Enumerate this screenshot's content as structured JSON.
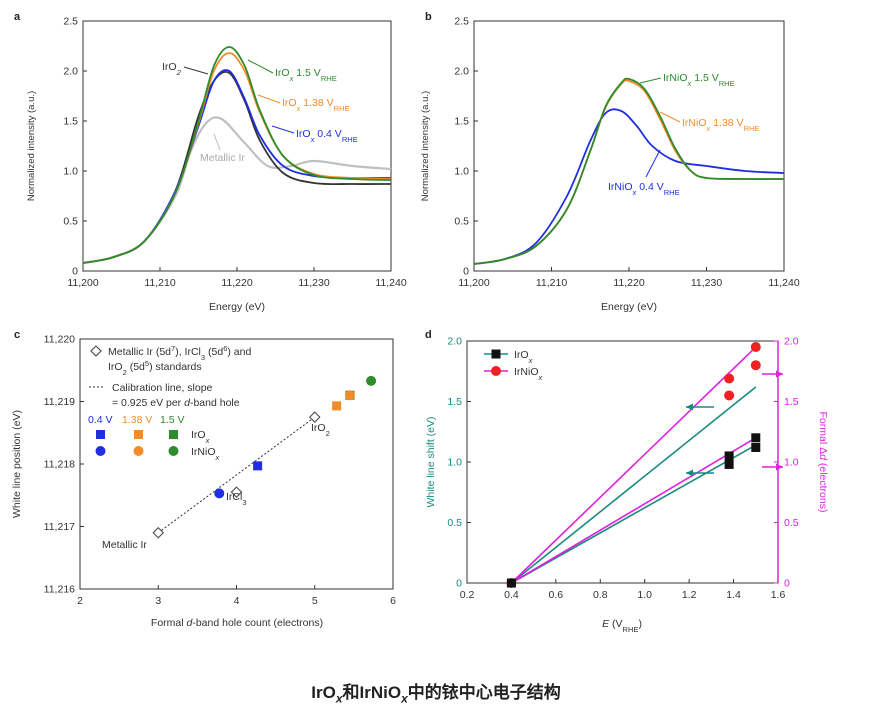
{
  "caption": {
    "main": "IrO",
    "sub1": "x",
    "mid": "和IrNiO",
    "sub2": "x",
    "tail": "中的铱中心电子结构"
  },
  "colors": {
    "green": "#2e8b2e",
    "orange": "#f28c28",
    "blue": "#1f2fe0",
    "grey": "#c0c0c0",
    "dark": "#333333",
    "teal": "#1a8a80",
    "magenta": "#e020e0",
    "red": "#ee2222"
  },
  "chart_data": [
    {
      "panel": "a",
      "type": "line",
      "xlabel": "Energy (eV)",
      "ylabel": "Normalized intensity (a.u.)",
      "xlim": [
        11200,
        11240
      ],
      "ylim": [
        0,
        2.5
      ],
      "xticks": [
        "11,200",
        "11,210",
        "11,220",
        "11,230",
        "11,240"
      ],
      "yticks": [
        "0",
        "0.5",
        "1.0",
        "1.5",
        "2.0",
        "2.5"
      ],
      "series": [
        {
          "name": "IrO2",
          "color": "#333333",
          "x": [
            11200,
            11204,
            11208,
            11212,
            11215,
            11217,
            11219,
            11221,
            11223,
            11226,
            11230,
            11235,
            11240
          ],
          "y": [
            0.08,
            0.14,
            0.3,
            0.8,
            1.55,
            1.9,
            1.98,
            1.7,
            1.3,
            0.98,
            0.88,
            0.87,
            0.87
          ]
        },
        {
          "name": "IrOx 1.5 VRHE",
          "color": "#2e8b2e",
          "x": [
            11200,
            11204,
            11208,
            11212,
            11215,
            11217,
            11219,
            11221,
            11223,
            11226,
            11230,
            11235,
            11240
          ],
          "y": [
            0.08,
            0.14,
            0.3,
            0.78,
            1.5,
            2.05,
            2.24,
            2.05,
            1.6,
            1.15,
            0.96,
            0.92,
            0.91
          ]
        },
        {
          "name": "IrOx 1.38 VRHE",
          "color": "#f28c28",
          "x": [
            11200,
            11204,
            11208,
            11212,
            11215,
            11217,
            11219,
            11221,
            11223,
            11226,
            11230,
            11235,
            11240
          ],
          "y": [
            0.08,
            0.14,
            0.3,
            0.78,
            1.48,
            2.0,
            2.18,
            2.0,
            1.58,
            1.15,
            0.97,
            0.93,
            0.92
          ]
        },
        {
          "name": "IrOx 0.4 VRHE",
          "color": "#1f2fe0",
          "x": [
            11200,
            11204,
            11208,
            11212,
            11215,
            11217,
            11219,
            11221,
            11223,
            11226,
            11230,
            11235,
            11240
          ],
          "y": [
            0.08,
            0.14,
            0.3,
            0.8,
            1.45,
            1.9,
            2.0,
            1.72,
            1.35,
            1.05,
            0.95,
            0.93,
            0.93
          ]
        },
        {
          "name": "Metallic Ir",
          "color": "#c0c0c0",
          "x": [
            11200,
            11204,
            11208,
            11212,
            11214,
            11216,
            11218,
            11221,
            11224,
            11227,
            11230,
            11235,
            11240
          ],
          "y": [
            0.08,
            0.14,
            0.3,
            0.75,
            1.2,
            1.48,
            1.52,
            1.28,
            1.05,
            1.05,
            1.1,
            1.05,
            1.02
          ]
        }
      ],
      "labels": [
        {
          "main": "IrO",
          "sub": "2",
          "tail": "",
          "color": "#333333"
        },
        {
          "main": "IrO",
          "sub": "x",
          "tail": " 1.5 V",
          "sub2": "RHE",
          "color": "#2e8b2e"
        },
        {
          "main": "IrO",
          "sub": "x",
          "tail": " 1.38 V",
          "sub2": "RHE",
          "color": "#f28c28"
        },
        {
          "main": "IrO",
          "sub": "x",
          "tail": " 0.4 V",
          "sub2": "RHE",
          "color": "#1f2fe0"
        },
        {
          "main": "Metallic Ir",
          "sub": "",
          "tail": "",
          "color": "#c0c0c0"
        }
      ]
    },
    {
      "panel": "b",
      "type": "line",
      "xlabel": "Energy (eV)",
      "ylabel": "Normalized intensity (a.u.)",
      "xlim": [
        11200,
        11240
      ],
      "ylim": [
        0,
        2.5
      ],
      "xticks": [
        "11,200",
        "11,210",
        "11,220",
        "11,230",
        "11,240"
      ],
      "yticks": [
        "0",
        "0.5",
        "1.0",
        "1.5",
        "2.0",
        "2.5"
      ],
      "series": [
        {
          "name": "IrNiOx 1.5 VRHE",
          "color": "#2e8b2e",
          "x": [
            11200,
            11204,
            11208,
            11212,
            11215,
            11217,
            11219,
            11220,
            11222,
            11224,
            11226,
            11228,
            11230,
            11235,
            11240
          ],
          "y": [
            0.07,
            0.12,
            0.25,
            0.62,
            1.2,
            1.65,
            1.88,
            1.92,
            1.82,
            1.55,
            1.22,
            1.0,
            0.93,
            0.92,
            0.92
          ]
        },
        {
          "name": "IrNiOx 1.38 VRHE",
          "color": "#f28c28",
          "x": [
            11200,
            11204,
            11208,
            11212,
            11215,
            11217,
            11219,
            11220,
            11222,
            11224,
            11226,
            11228,
            11230,
            11235,
            11240
          ],
          "y": [
            0.07,
            0.12,
            0.25,
            0.62,
            1.2,
            1.64,
            1.87,
            1.9,
            1.8,
            1.52,
            1.2,
            1.0,
            0.93,
            0.92,
            0.92
          ]
        },
        {
          "name": "IrNiOx 0.4 VRHE",
          "color": "#1f2fe0",
          "x": [
            11200,
            11204,
            11208,
            11212,
            11215,
            11217,
            11219,
            11221,
            11223,
            11226,
            11230,
            11235,
            11240
          ],
          "y": [
            0.07,
            0.12,
            0.28,
            0.75,
            1.3,
            1.58,
            1.6,
            1.45,
            1.25,
            1.1,
            1.05,
            1.0,
            0.98
          ]
        }
      ],
      "labels": [
        {
          "main": "IrNiO",
          "sub": "x",
          "tail": " 1.5 V",
          "sub2": "RHE",
          "color": "#2e8b2e"
        },
        {
          "main": "IrNiO",
          "sub": "x",
          "tail": " 1.38 V",
          "sub2": "RHE",
          "color": "#f28c28"
        },
        {
          "main": "IrNiO",
          "sub": "x",
          "tail": " 0.4 V",
          "sub2": "RHE",
          "color": "#1f2fe0"
        }
      ]
    },
    {
      "panel": "c",
      "type": "scatter",
      "xlabel_a": "Formal ",
      "xlabel_it": "d",
      "xlabel_b": "-band hole count (electrons)",
      "ylabel": "White line position (eV)",
      "xlim": [
        2,
        6
      ],
      "ylim": [
        11216,
        11220
      ],
      "xticks": [
        "2",
        "3",
        "4",
        "5",
        "6"
      ],
      "yticks": [
        "11,216",
        "11,217",
        "11,218",
        "11,219",
        "11,220"
      ],
      "standards": [
        {
          "name": "Metallic Ir",
          "x": 3.0,
          "y": 11216.9
        },
        {
          "name": "IrCl3",
          "x": 4.0,
          "y": 11217.55
        },
        {
          "name": "IrO2",
          "x": 5.0,
          "y": 11218.75
        }
      ],
      "standard_labels": [
        {
          "main": "Metallic Ir",
          "sub": ""
        },
        {
          "main": "IrCl",
          "sub": "3"
        },
        {
          "main": "IrO",
          "sub": "2"
        }
      ],
      "calibration_line": {
        "x": [
          3.0,
          5.0
        ],
        "y": [
          11216.9,
          11218.75
        ]
      },
      "iro_x_squares": [
        {
          "v": "0.4 V",
          "x": 4.27,
          "y": 11217.97,
          "color": "#1f2fe0"
        },
        {
          "v": "1.38 V",
          "x": 5.28,
          "y": 11218.93,
          "color": "#f28c28"
        },
        {
          "v": "1.5 V",
          "x": 5.45,
          "y": 11219.1,
          "color": "#2e8b2e"
        }
      ],
      "irnio_x_circles": [
        {
          "v": "0.4 V",
          "x": 3.78,
          "y": 11217.53,
          "color": "#1f2fe0"
        },
        {
          "v": "1.38 V",
          "x": 5.45,
          "y": 11219.1,
          "color": "#f28c28"
        },
        {
          "v": "1.5 V",
          "x": 5.72,
          "y": 11219.33,
          "color": "#2e8b2e"
        }
      ],
      "legend": {
        "standards_line1": "Metallic Ir (5d",
        "standards_line1_sup1": "7",
        "standards_line1_mid": "), IrCl",
        "standards_line1_sub": "3",
        "standards_line1_b": " (5d",
        "standards_line1_sup2": "6",
        "standards_line1_c": ") and",
        "standards_line2_a": "IrO",
        "standards_line2_sub": "2",
        "standards_line2_b": " (5d",
        "standards_line2_sup": "5",
        "standards_line2_c": ") standards",
        "calib_line1": "Calibration line, slope",
        "calib_line2_a": "= 0.925 eV per ",
        "calib_line2_it": "d",
        "calib_line2_b": "-band hole",
        "v1": "0.4 V",
        "v2": "1.38 V",
        "v3": "1.5 V",
        "iro_main": "IrO",
        "iro_sub": "x",
        "irnio_main": "IrNiO",
        "irnio_sub": "x"
      }
    },
    {
      "panel": "d",
      "type": "scatter",
      "xlabel_it": "E",
      "xlabel_a": " (V",
      "xlabel_sub": "RHE",
      "xlabel_b": ")",
      "ylabel_left": "White line shift (eV)",
      "ylabel_right_a": "Formal Δ",
      "ylabel_right_it": "d",
      "ylabel_right_b": " (electrons)",
      "xlim": [
        0.2,
        1.6
      ],
      "ylim_left": [
        0,
        2.0
      ],
      "ylim_right": [
        0,
        2.0
      ],
      "xticks": [
        "0.2",
        "0.4",
        "0.6",
        "0.8",
        "1.0",
        "1.2",
        "1.4",
        "1.6"
      ],
      "yticks_left": [
        "0",
        "0.5",
        "1.0",
        "1.5",
        "2.0"
      ],
      "yticks_right": [
        "0",
        "0.5",
        "1.0",
        "1.5",
        "2.0"
      ],
      "iro_x_squares": [
        {
          "x": 0.4,
          "y": 0
        },
        {
          "x": 1.38,
          "y": 1.05
        },
        {
          "x": 1.38,
          "y": 0.98
        },
        {
          "x": 1.5,
          "y": 1.2
        },
        {
          "x": 1.5,
          "y": 1.12
        }
      ],
      "irnio_x_circles": [
        {
          "x": 0.4,
          "y": 0
        },
        {
          "x": 1.38,
          "y": 1.69
        },
        {
          "x": 1.38,
          "y": 1.55
        },
        {
          "x": 1.5,
          "y": 1.95
        },
        {
          "x": 1.5,
          "y": 1.8
        }
      ],
      "fit_lines": [
        {
          "color": "#1a8a80",
          "x": [
            0.4,
            1.5
          ],
          "y": [
            0,
            1.62
          ]
        },
        {
          "color": "#1a8a80",
          "x": [
            0.4,
            1.5
          ],
          "y": [
            0,
            1.14
          ]
        },
        {
          "color": "#e020e0",
          "x": [
            0.4,
            1.5
          ],
          "y": [
            0,
            1.95
          ]
        },
        {
          "color": "#e020e0",
          "x": [
            0.4,
            1.5
          ],
          "y": [
            0,
            1.2
          ]
        }
      ],
      "legend": {
        "iro_main": "IrO",
        "iro_sub": "x",
        "irnio_main": "IrNiO",
        "irnio_sub": "x"
      }
    }
  ]
}
